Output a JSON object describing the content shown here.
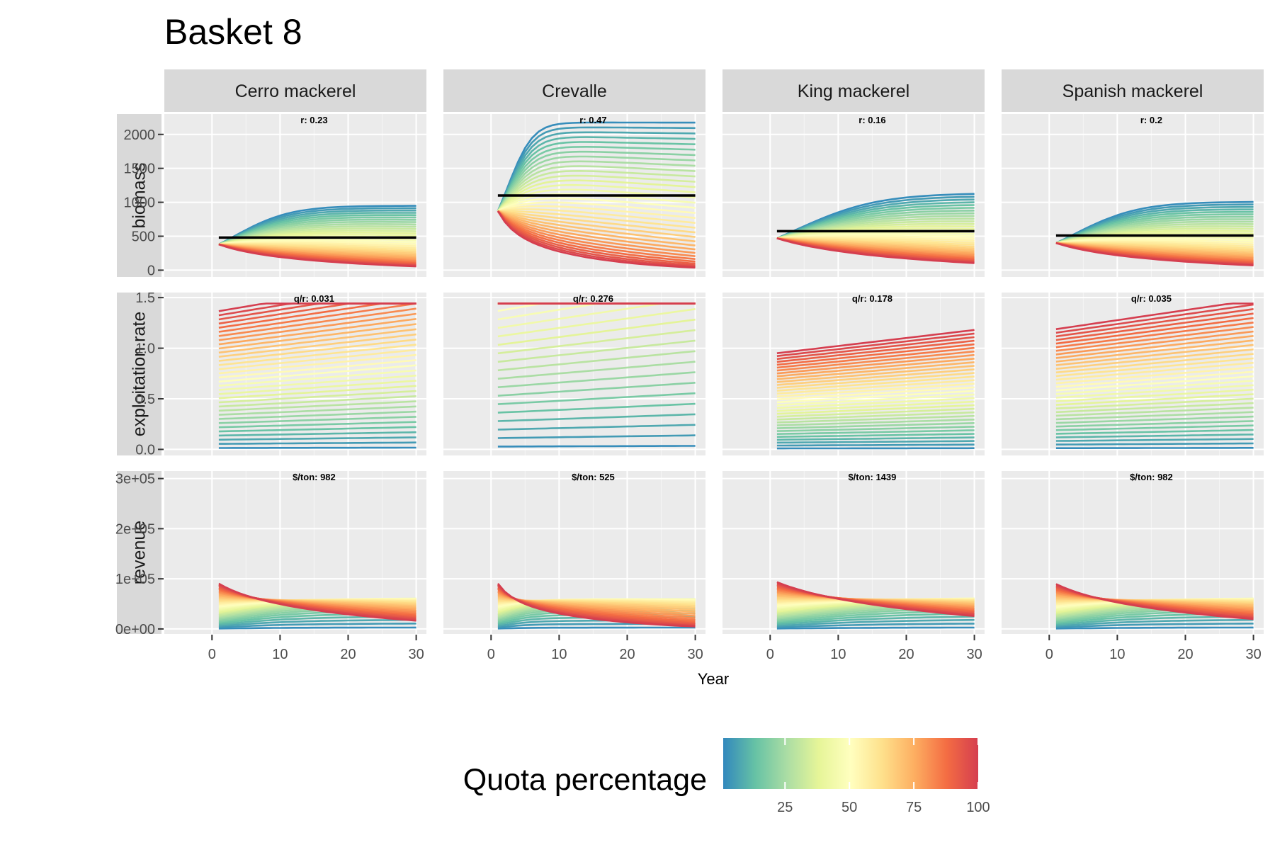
{
  "title": "Basket 8",
  "chart_data": {
    "type": "line",
    "x_label": "Year",
    "x_ticks": [
      0,
      10,
      20,
      30
    ],
    "x_range": [
      -7,
      31.5
    ],
    "species": [
      "Cerro mackerel",
      "Crevalle",
      "King mackerel",
      "Spanish mackerel"
    ],
    "rows": [
      {
        "name": "biomass",
        "ylim": [
          -100,
          2300
        ],
        "ticks": [
          0,
          500,
          1000,
          1500,
          2000
        ],
        "tick_labels": [
          "0",
          "500",
          "1000",
          "1500",
          "2000"
        ]
      },
      {
        "name": "exploitation.rate",
        "ylim": [
          -0.06,
          1.55
        ],
        "ticks": [
          0,
          0.5,
          1.0,
          1.5
        ],
        "tick_labels": [
          "0.0",
          "0.5",
          "1.0",
          "1.5"
        ]
      },
      {
        "name": "revenue",
        "ylim": [
          -10000,
          315000
        ],
        "ticks": [
          0,
          100000,
          200000,
          300000
        ],
        "tick_labels": [
          "0e+00",
          "1e+05",
          "2e+05",
          "3e+05"
        ]
      }
    ],
    "params": [
      {
        "r": 0.23,
        "q_over_r": 0.031,
        "price": 982,
        "K": 960,
        "B0": 380,
        "ref": 480
      },
      {
        "r": 0.47,
        "q_over_r": 0.276,
        "price": 525,
        "K": 2200,
        "B0": 870,
        "ref": 1100
      },
      {
        "r": 0.16,
        "q_over_r": 0.178,
        "price": 1439,
        "K": 1150,
        "B0": 470,
        "ref": 575
      },
      {
        "r": 0.2,
        "q_over_r": 0.035,
        "price": 982,
        "K": 1020,
        "B0": 400,
        "ref": 510
      }
    ],
    "annotations": [
      [
        "r:  0.23",
        "q/r:  0.031",
        "$/ton:  982"
      ],
      [
        "r:  0.47",
        "q/r:  0.276",
        "$/ton:  525"
      ],
      [
        "r:  0.16",
        "q/r:  0.178",
        "$/ton:  1439"
      ],
      [
        "r:  0.2",
        "q/r:  0.035",
        "$/ton:  982"
      ]
    ],
    "reference_lines": {
      "row": "biomass",
      "values": [
        480,
        1100,
        575,
        510
      ]
    },
    "years": [
      1,
      30
    ],
    "color_scale": {
      "title": "Quota percentage",
      "palette": [
        "#3288bd",
        "#66c2a5",
        "#abdda4",
        "#e6f598",
        "#ffffbf",
        "#fee08b",
        "#fdae61",
        "#f46d43",
        "#d53e4f"
      ],
      "range": [
        1,
        100
      ],
      "ticks": [
        25,
        50,
        75,
        100
      ]
    }
  }
}
